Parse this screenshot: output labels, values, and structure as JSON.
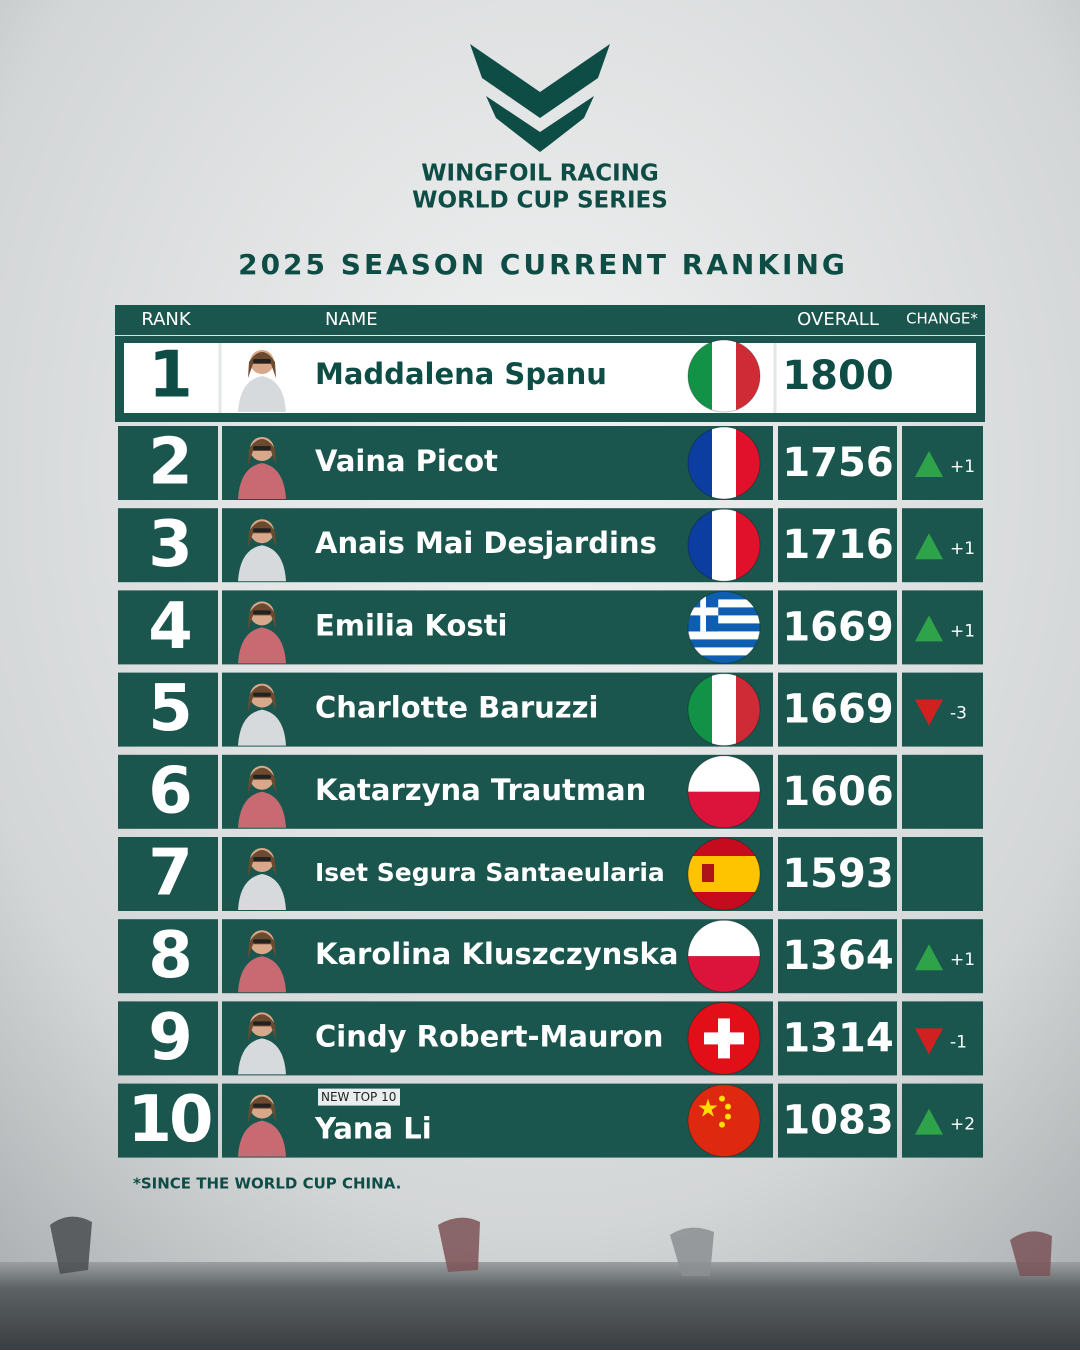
{
  "header": {
    "brand_line1": "WINGFOIL RACING",
    "brand_line2": "WORLD CUP SERIES",
    "title": "2025 SEASON CURRENT RANKING"
  },
  "table": {
    "columns": [
      "RANK",
      "NAME",
      "OVERALL",
      "CHANGE*"
    ],
    "rows": [
      {
        "rank": "1",
        "name": "Maddalena Spanu",
        "overall": "1800",
        "change": null
      },
      {
        "rank": "2",
        "name": "Vaina Picot",
        "overall": "1756",
        "change": "+1"
      },
      {
        "rank": "3",
        "name": "Anais Mai Desjardins",
        "overall": "1716",
        "change": "+1"
      },
      {
        "rank": "4",
        "name": "Emilia Kosti",
        "overall": "1669",
        "change": "+1"
      },
      {
        "rank": "5",
        "name": "Charlotte Baruzzi",
        "overall": "1669",
        "change": "-3"
      },
      {
        "rank": "6",
        "name": "Katarzyna Trautman",
        "overall": "1606",
        "change": null
      },
      {
        "rank": "7",
        "name": "Iset Segura Santaeularia",
        "overall": "1593",
        "change": null
      },
      {
        "rank": "8",
        "name": "Karolina Kluszczynska",
        "overall": "1364",
        "change": "+1"
      },
      {
        "rank": "9",
        "name": "Cindy Robert-Mauron",
        "overall": "1314",
        "change": "-1"
      },
      {
        "rank": "10",
        "name": "Yana Li",
        "overall": "1083",
        "change": "+2",
        "badge": "NEW TOP 10"
      }
    ]
  },
  "footnote": "*SINCE THE WORLD CUP CHINA."
}
